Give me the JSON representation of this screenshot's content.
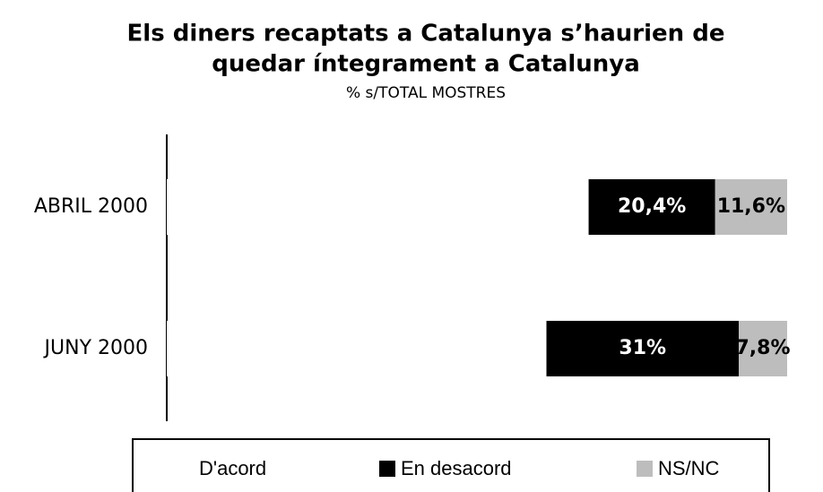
{
  "chart_data": {
    "type": "stacked-bar-horizontal",
    "title": [
      "Els diners recaptats a Catalunya s’haurien de",
      "quedar íntegrament a Catalunya"
    ],
    "subtitle": "% s/TOTAL MOSTRES",
    "categories": [
      "ABRIL 2000",
      "JUNY 2000"
    ],
    "series": [
      {
        "name": "D'acord",
        "color": "#ffffff",
        "values": [
          68,
          61.2
        ]
      },
      {
        "name": "En desacord",
        "color": "#000000",
        "values": [
          20.4,
          31
        ],
        "value_labels": [
          "20,4%",
          "31%"
        ]
      },
      {
        "name": "NS/NC",
        "color": "#bdbdbd",
        "values": [
          11.6,
          7.8
        ],
        "value_labels": [
          "11,6%",
          "7,8%"
        ]
      }
    ],
    "xlim": [
      0,
      100
    ]
  }
}
